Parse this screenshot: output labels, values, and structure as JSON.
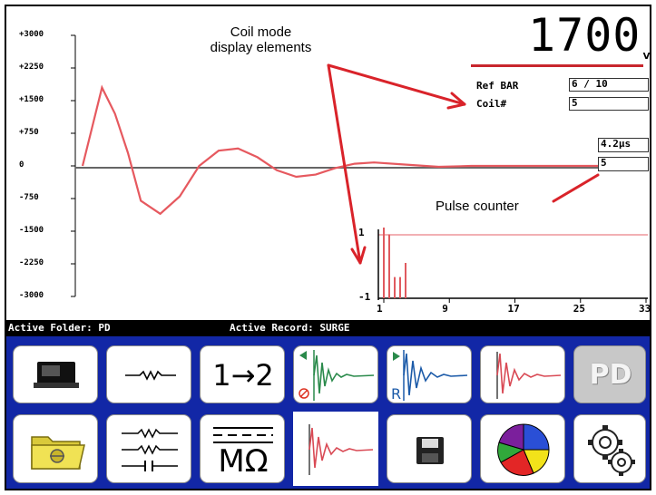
{
  "display": {
    "voltage_value": "1700",
    "voltage_unit": "V",
    "ref_bar_label": "Ref BAR",
    "ref_bar_value": "6 / 10",
    "coil_label": "Coil#",
    "coil_value": "5",
    "pulse_width": "4.2µs",
    "pulse_count": "5"
  },
  "annotations": {
    "coil_mode": [
      "Coil mode",
      "display elements"
    ],
    "pulse_counter": "Pulse counter"
  },
  "chart_data": [
    {
      "type": "line",
      "title": "",
      "xlabel": "",
      "ylabel": "",
      "y_tick_labels": [
        "+3000",
        "+2250",
        "+1500",
        "+750",
        "0",
        "-750",
        "-1500",
        "-2250",
        "-3000"
      ],
      "ylim": [
        -3000,
        3000
      ],
      "grid": false,
      "series": [
        {
          "color": "#e6595f",
          "x": [
            0,
            3,
            5,
            7,
            9,
            12,
            15,
            18,
            21,
            24,
            27,
            30,
            33,
            36,
            39,
            42,
            45,
            50,
            55,
            60,
            70,
            80
          ],
          "y": [
            0,
            1800,
            1200,
            300,
            -800,
            -1100,
            -700,
            0,
            350,
            400,
            200,
            -100,
            -250,
            -200,
            -50,
            50,
            80,
            30,
            -20,
            0,
            0,
            0
          ]
        }
      ]
    },
    {
      "type": "bar",
      "x_tick_labels": [
        "1",
        "9",
        "17",
        "25",
        "33"
      ],
      "y_tick_labels": [
        "1",
        "-1"
      ],
      "ylim": [
        -1,
        1
      ],
      "xlim": [
        1,
        33
      ],
      "reference_level": 1,
      "series": [
        {
          "color": "#e05a5f",
          "x": [
            1,
            2,
            3,
            4,
            5
          ],
          "values": [
            1,
            0.9,
            0.3,
            0.3,
            0.5
          ]
        }
      ]
    }
  ],
  "status": {
    "active_folder": "Active Folder: PD",
    "active_record": "Active Record: SURGE"
  },
  "buttons": {
    "row1": [
      "device-icon",
      "resistor-icon",
      "swap-icon",
      "waveform-reference-icon",
      "waveform-r-icon",
      "waveform-red-icon",
      "pd-icon"
    ],
    "row1_text": {
      "swap": "1→2",
      "pd": "PD"
    },
    "row2": [
      "folder-icon",
      "resistor-network-icon",
      "megohm-icon",
      "coil-mode-icon",
      "save-icon",
      "pie-chart-icon",
      "settings-icon"
    ],
    "row2_text": {
      "megohm": "MΩ"
    }
  },
  "colors": {
    "trace": "#e6595f",
    "panel": "#1227a6",
    "arrow": "#d9232a"
  }
}
